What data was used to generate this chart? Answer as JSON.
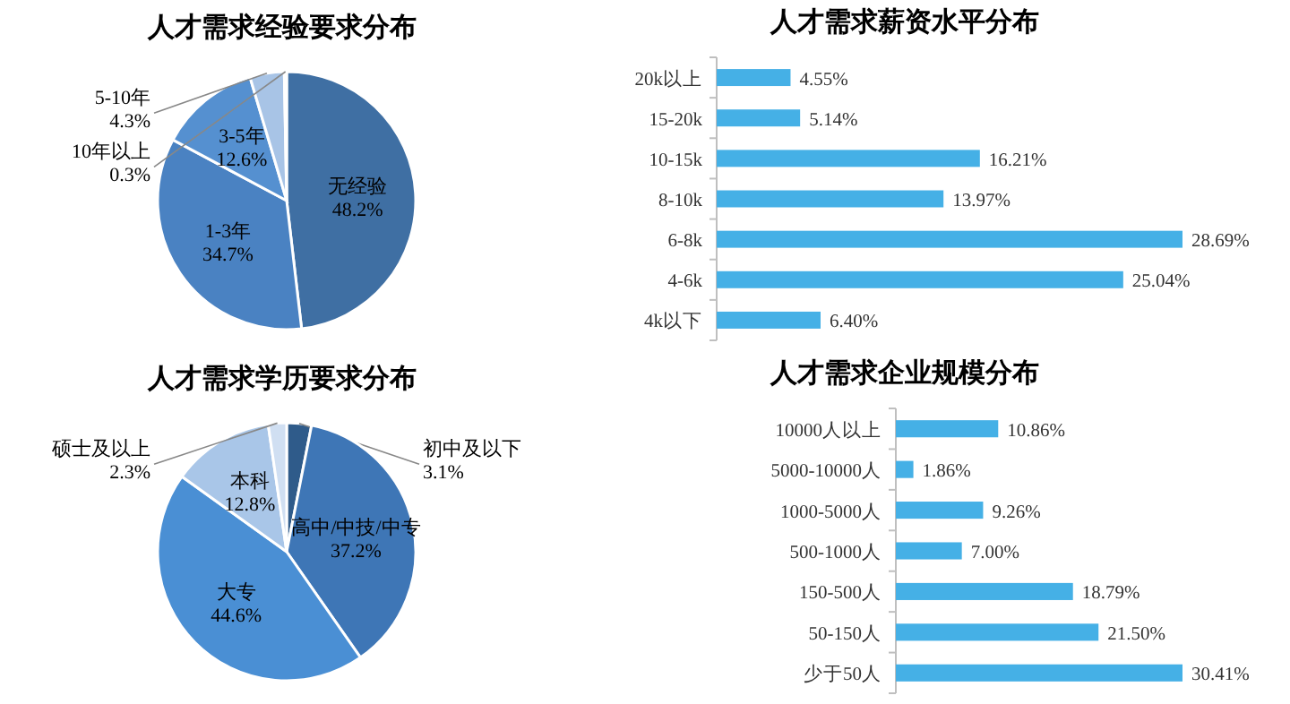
{
  "chart_data": [
    {
      "type": "pie",
      "title": "人才需求经验要求分布",
      "categories": [
        "无经验",
        "1-3年",
        "3-5年",
        "5-10年",
        "10年以上"
      ],
      "values": [
        48.2,
        34.7,
        12.6,
        4.3,
        0.3
      ],
      "value_labels": [
        "48.2%",
        "34.7%",
        "12.6%",
        "4.3%",
        "0.3%"
      ],
      "colors": [
        "#3f6fa3",
        "#4a82c2",
        "#5590d0",
        "#a8c4e6",
        "#c9dbf0"
      ]
    },
    {
      "type": "bar",
      "orientation": "horizontal",
      "title": "人才需求薪资水平分布",
      "categories": [
        "20k以上",
        "15-20k",
        "10-15k",
        "8-10k",
        "6-8k",
        "4-6k",
        "4k以下"
      ],
      "values": [
        4.55,
        5.14,
        16.21,
        13.97,
        28.69,
        25.04,
        6.4
      ],
      "value_labels": [
        "4.55%",
        "5.14%",
        "16.21%",
        "13.97%",
        "28.69%",
        "25.04%",
        "6.40%"
      ],
      "color": "#45b0e6"
    },
    {
      "type": "pie",
      "title": "人才需求学历要求分布",
      "categories": [
        "初中及以下",
        "高中/中技/中专",
        "大专",
        "本科",
        "硕士及以上"
      ],
      "values": [
        3.1,
        37.2,
        44.6,
        12.8,
        2.3
      ],
      "value_labels": [
        "3.1%",
        "37.2%",
        "44.6%",
        "12.8%",
        "2.3%"
      ],
      "colors": [
        "#2f5b8a",
        "#3e76b6",
        "#4a8fd4",
        "#a9c6e8",
        "#d0dff2"
      ]
    },
    {
      "type": "bar",
      "orientation": "horizontal",
      "title": "人才需求企业规模分布",
      "categories": [
        "10000人以上",
        "5000-10000人",
        "1000-5000人",
        "500-1000人",
        "150-500人",
        "50-150人",
        "少于50人"
      ],
      "values": [
        10.86,
        1.86,
        9.26,
        7.0,
        18.79,
        21.5,
        30.41
      ],
      "value_labels": [
        "10.86%",
        "1.86%",
        "9.26%",
        "7.00%",
        "18.79%",
        "21.50%",
        "30.41%"
      ],
      "color": "#45b0e6"
    }
  ]
}
